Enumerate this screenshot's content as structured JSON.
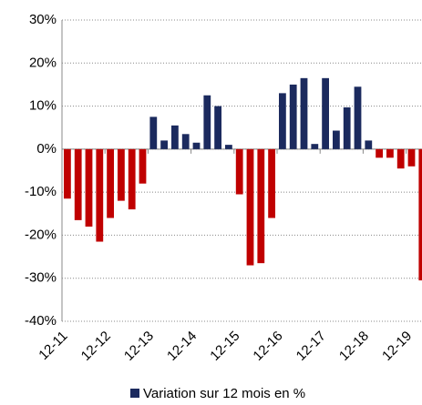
{
  "chart_data": {
    "type": "bar",
    "categories": [
      "12-11",
      null,
      null,
      null,
      "12-12",
      null,
      null,
      null,
      "12-13",
      null,
      null,
      null,
      "12-14",
      null,
      null,
      null,
      "12-15",
      null,
      null,
      null,
      "12-16",
      null,
      null,
      null,
      "12-17",
      null,
      null,
      null,
      "12-18",
      null,
      null,
      null,
      "12-19",
      null
    ],
    "series": [
      {
        "name": "Variation sur 12 mois en %",
        "color": "#1b2a5e",
        "negative_color": "#c00000",
        "values": [
          -11.5,
          -16.5,
          -18,
          -21.5,
          -16,
          -12,
          -14,
          -8,
          7.5,
          2,
          5.5,
          3.5,
          1.5,
          12.5,
          10,
          1,
          -10.5,
          -27,
          -26.5,
          -16,
          13,
          15,
          16.5,
          1.2,
          16.5,
          4.3,
          9.7,
          14.5,
          2,
          -2,
          -2,
          -4.5,
          -4,
          -30.5
        ]
      }
    ],
    "ylim": [
      -40,
      30
    ],
    "yticks": [
      {
        "value": -40,
        "label": "-40%"
      },
      {
        "value": -30,
        "label": "-30%"
      },
      {
        "value": -20,
        "label": "-20%"
      },
      {
        "value": -10,
        "label": "-10%"
      },
      {
        "value": 0,
        "label": "0%"
      },
      {
        "value": 10,
        "label": "10%"
      },
      {
        "value": 20,
        "label": "20%"
      },
      {
        "value": 30,
        "label": "30%"
      }
    ],
    "grid": true,
    "legend": "bottom"
  }
}
